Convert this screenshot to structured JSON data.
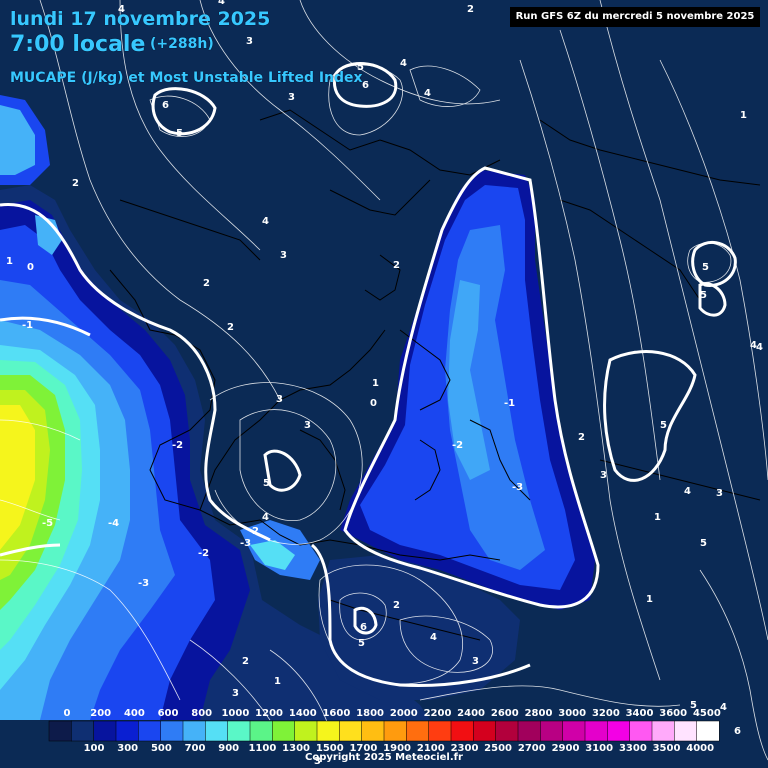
{
  "header": {
    "date": "lundi 17 novembre 2025",
    "time": "7:00 locale",
    "lead": "(+288h)",
    "parameter": "MUCAPE (J/kg) et Most Unstable Lifted Index",
    "run": "Run GFS 6Z du mercredi 5 novembre 2025"
  },
  "footer": {
    "copyright": "Copyright 2025 Meteociel.fr"
  },
  "legend": {
    "top_labels": [
      "0",
      "200",
      "400",
      "600",
      "800",
      "1000",
      "1200",
      "1400",
      "1600",
      "1800",
      "2000",
      "2200",
      "2400",
      "2600",
      "2800",
      "3000",
      "3200",
      "3400",
      "3600",
      "4500"
    ],
    "bottom_labels": [
      "100",
      "300",
      "500",
      "700",
      "900",
      "1100",
      "1300",
      "1500",
      "1700",
      "1900",
      "2100",
      "2300",
      "2500",
      "2700",
      "2900",
      "3100",
      "3300",
      "3500",
      "4000"
    ],
    "colors": [
      "#0d1b4a",
      "#0f2f72",
      "#07149e",
      "#0a1fd2",
      "#1a46f0",
      "#2f7cf5",
      "#45b2f8",
      "#55dff5",
      "#5af7c7",
      "#5bf488",
      "#7ff238",
      "#c0f21e",
      "#f5f51c",
      "#ffe01d",
      "#ffbe12",
      "#ff9b0e",
      "#ff6e0f",
      "#ff3d11",
      "#f20f12",
      "#d4001e",
      "#b2003c",
      "#a1005c",
      "#b80083",
      "#d000a8",
      "#e400cb",
      "#f300e5",
      "#ff58f2",
      "#ffaafa",
      "#ffe3ff",
      "#ffffff"
    ]
  },
  "contour_labels": {
    "lifted_index": [
      "2",
      "4",
      "5",
      "6",
      "4",
      "3",
      "6",
      "5",
      "2",
      "4",
      "3",
      "2",
      "1",
      "0",
      "-1",
      "1",
      "3",
      "2",
      "2",
      "0",
      "2",
      "-2",
      "-3",
      "2",
      "3",
      "5",
      "4",
      "5",
      "3",
      "4",
      "-4",
      "-5",
      "-3",
      "-2",
      "-3",
      "-2",
      "2",
      "3",
      "1",
      "5",
      "4",
      "6",
      "5",
      "3",
      "4",
      "1",
      "5",
      "4",
      "3",
      "5",
      "1",
      "-1",
      "6",
      "3",
      "2",
      "3",
      "5",
      "4",
      "1",
      "4",
      "4"
    ]
  }
}
